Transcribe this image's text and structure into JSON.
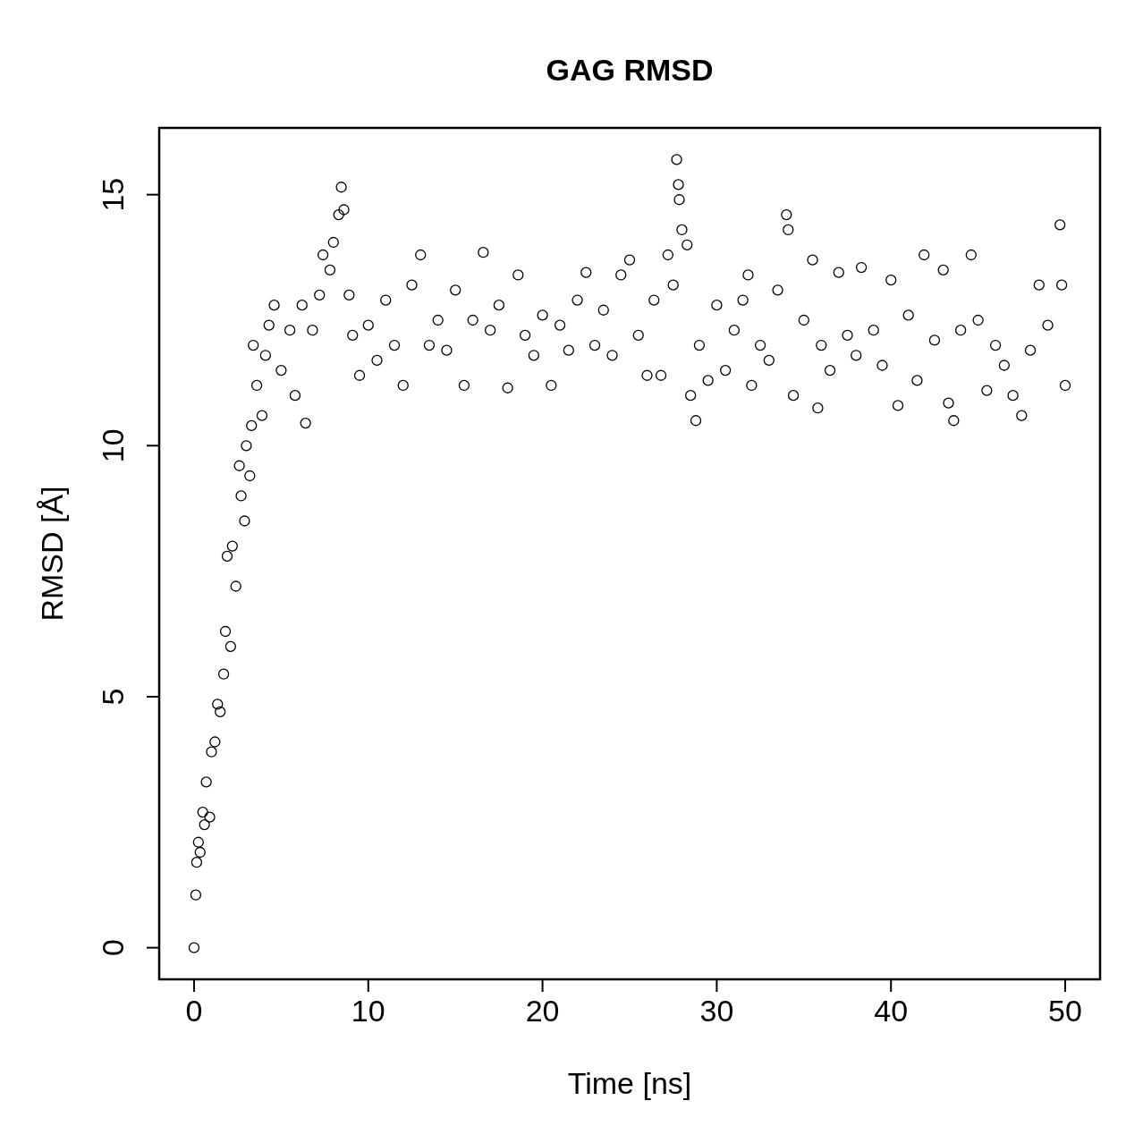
{
  "chart_data": {
    "type": "scatter",
    "title": "GAG RMSD",
    "xlabel": "Time [ns]",
    "ylabel": "RMSD [Å]",
    "xlim": [
      -2,
      52
    ],
    "ylim": [
      -0.63,
      16.33
    ],
    "xticks": [
      0,
      10,
      20,
      30,
      40,
      50
    ],
    "yticks": [
      0,
      5,
      10,
      15
    ],
    "marker": "circle",
    "grid": false,
    "series": [
      {
        "color": "#000000",
        "x": [
          0,
          0.1,
          0.15,
          0.25,
          0.35,
          0.5,
          0.6,
          0.7,
          0.9,
          1,
          1.2,
          1.35,
          1.5,
          1.7,
          1.8,
          1.9,
          2.1,
          2.2,
          2.4,
          2.6,
          2.7,
          2.9,
          3,
          3.2,
          3.3,
          3.4,
          3.6,
          3.9,
          4.1,
          4.3,
          4.6,
          5,
          5.5,
          5.8,
          6.2,
          6.4,
          6.8,
          7.2,
          7.4,
          7.8,
          8,
          8.3,
          8.45,
          8.6,
          8.9,
          9.1,
          9.5,
          10,
          10.5,
          11,
          11.5,
          12,
          12.5,
          13,
          13.5,
          14,
          14.5,
          15,
          15.5,
          16,
          16.6,
          17,
          17.5,
          18,
          18.6,
          19,
          19.5,
          20,
          20.5,
          21,
          21.5,
          22,
          22.5,
          23,
          23.5,
          24,
          24.5,
          25,
          25.5,
          26,
          26.4,
          26.8,
          27.2,
          27.5,
          27.7,
          27.8,
          27.85,
          28,
          28.3,
          28.5,
          28.8,
          29,
          29.5,
          30,
          30.5,
          31,
          31.5,
          31.8,
          32,
          32.5,
          33,
          33.5,
          34,
          34.1,
          34.4,
          35,
          35.5,
          35.8,
          36,
          36.5,
          37,
          37.5,
          38,
          38.3,
          39,
          39.5,
          40,
          40.4,
          41,
          41.5,
          41.9,
          42.5,
          43,
          43.3,
          43.6,
          44,
          44.6,
          45,
          45.5,
          46,
          46.5,
          47,
          47.5,
          48,
          48.5,
          49,
          49.7,
          49.8,
          50
        ],
        "values": [
          0,
          1.05,
          1.7,
          2.1,
          1.9,
          2.7,
          2.45,
          3.3,
          2.6,
          3.9,
          4.1,
          4.85,
          4.7,
          5.45,
          6.3,
          7.8,
          6.0,
          8.0,
          7.2,
          9.6,
          9.0,
          8.5,
          10.0,
          9.4,
          10.4,
          12.0,
          11.2,
          10.6,
          11.8,
          12.4,
          12.8,
          11.5,
          12.3,
          11.0,
          12.8,
          10.45,
          12.3,
          13.0,
          13.8,
          13.5,
          14.05,
          14.6,
          15.15,
          14.7,
          13.0,
          12.2,
          11.4,
          12.4,
          11.7,
          12.9,
          12.0,
          11.2,
          13.2,
          13.8,
          12.0,
          12.5,
          11.9,
          13.1,
          11.2,
          12.5,
          13.85,
          12.3,
          12.8,
          11.15,
          13.4,
          12.2,
          11.8,
          12.6,
          11.2,
          12.4,
          11.9,
          12.9,
          13.45,
          12.0,
          12.7,
          11.8,
          13.4,
          13.7,
          12.2,
          11.4,
          12.9,
          11.4,
          13.8,
          13.2,
          15.7,
          15.2,
          14.9,
          14.3,
          14.0,
          11.0,
          10.5,
          12.0,
          11.3,
          12.8,
          11.5,
          12.3,
          12.9,
          13.4,
          11.2,
          12.0,
          11.7,
          13.1,
          14.6,
          14.3,
          11.0,
          12.5,
          13.7,
          10.75,
          12.0,
          11.5,
          13.45,
          12.2,
          11.8,
          13.55,
          12.3,
          11.6,
          13.3,
          10.8,
          12.6,
          11.3,
          13.8,
          12.1,
          13.5,
          10.85,
          10.5,
          12.3,
          13.8,
          12.5,
          11.1,
          12.0,
          11.6,
          11.0,
          10.6,
          11.9,
          13.2,
          12.4,
          14.4,
          13.2,
          11.2
        ]
      }
    ]
  }
}
